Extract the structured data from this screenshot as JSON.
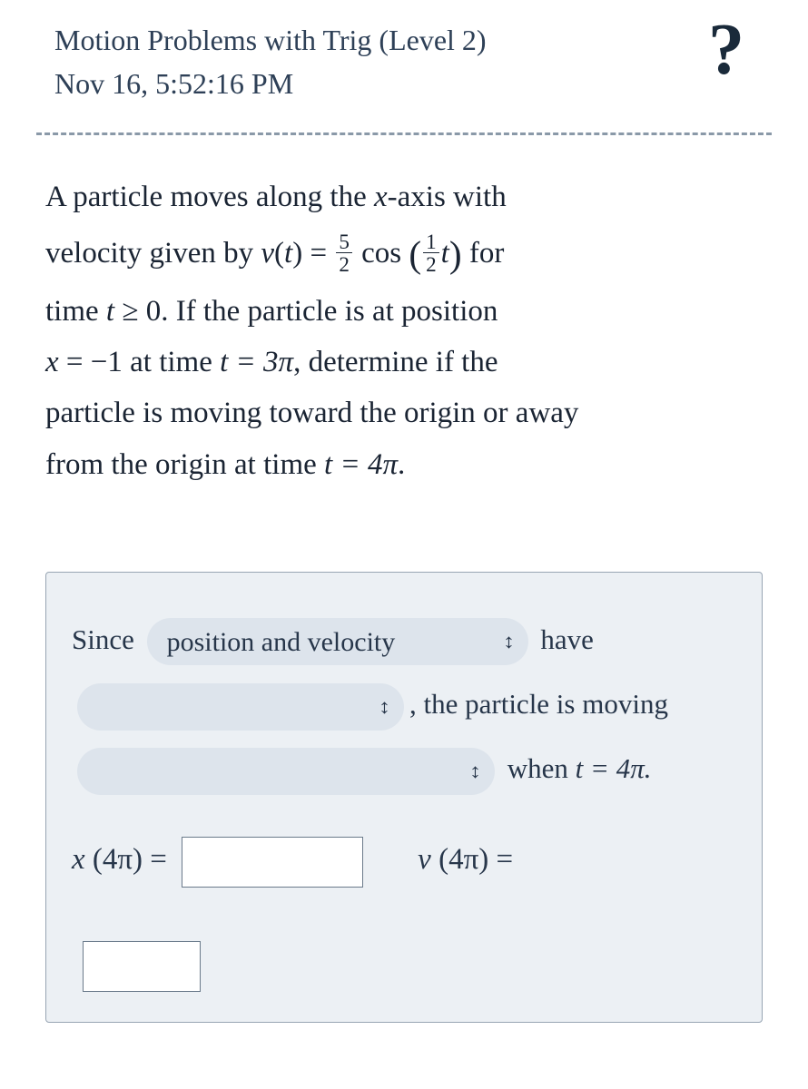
{
  "header": {
    "title": "Motion Problems with Trig (Level 2)",
    "timestamp": "Nov 16, 5:52:16 PM",
    "help_icon": "?"
  },
  "problem": {
    "line1_a": "A particle moves along the ",
    "line1_axis": "x",
    "line1_b": "-axis with",
    "line2_a": "velocity given by ",
    "line2_v": "v",
    "line2_paren_t": "t",
    "line2_eq": " = ",
    "frac1_num": "5",
    "frac1_den": "2",
    "line2_cos": " cos ",
    "frac2_num": "1",
    "frac2_den": "2",
    "line2_t2": "t",
    "line2_for": " for",
    "line3_a": "time ",
    "line3_t": "t",
    "line3_ge": " ≥ 0",
    "line3_b": ". If the particle is at position",
    "line4_x": "x",
    "line4_eq": " = −1",
    "line4_at": " at time ",
    "line4_t": "t",
    "line4_val": " = 3π",
    "line4_b": ", determine if the",
    "line5": "particle is moving toward the origin or away",
    "line6_a": "from the origin at time ",
    "line6_t": "t",
    "line6_val": " = 4π",
    "line6_dot": "."
  },
  "answer": {
    "since": "Since ",
    "select1": "position and velocity",
    "have": " have",
    "comma_text": ", the particle is moving",
    "when_a": " when ",
    "when_t": "t",
    "when_val": " = 4π.",
    "x_label_a": "x",
    "x_label_b": " (4π) = ",
    "v_label_a": "v",
    "v_label_b": " (4π) = "
  },
  "style": {
    "bg": "#ffffff",
    "text_color": "#1a2433",
    "header_color": "#2e4057",
    "box_bg": "#ecf0f4",
    "pill_bg": "#dde4ec",
    "border_color": "#98a5b3",
    "dash_color": "#8a99a8"
  }
}
